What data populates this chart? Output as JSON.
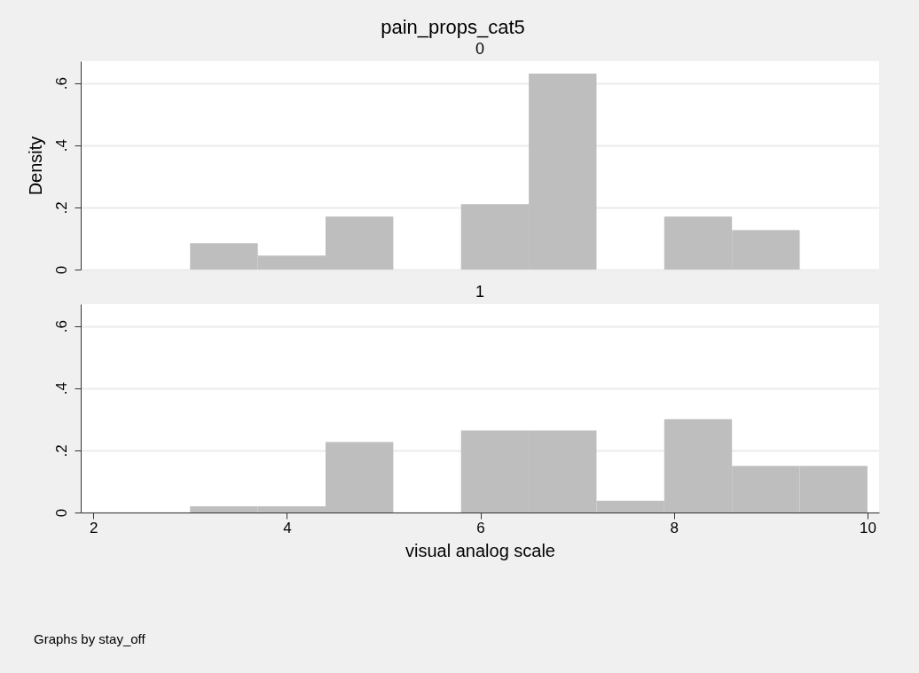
{
  "chart_data": [
    {
      "type": "histogram",
      "title": "pain_props_cat5",
      "subtitle": "0",
      "ylabel": "Density",
      "bins": [
        3,
        3.7,
        4.4,
        5.1,
        5.8,
        6.5,
        7.2,
        7.9,
        8.6,
        9.3,
        10
      ],
      "values": [
        0.085,
        0.045,
        0.17,
        0,
        0.21,
        0.63,
        0,
        0.17,
        0.127,
        0
      ],
      "color": "#bebebe",
      "xlim": [
        1.87,
        10.12
      ],
      "ylim": [
        0,
        0.67
      ],
      "xticks": [
        2,
        4,
        6,
        8,
        10
      ],
      "yticks": [
        0,
        {
          "value": 0.2,
          "label": ".2"
        },
        {
          "value": 0.4,
          "label": ".4"
        },
        {
          "value": 0.6,
          "label": ".6"
        }
      ],
      "grid": "y",
      "tick_labels": "y"
    },
    {
      "type": "histogram",
      "subtitle": "1",
      "xlabel": "visual analog scale",
      "annotations": [
        "Graphs by stay_off"
      ],
      "bins": [
        3,
        3.7,
        4.4,
        5.1,
        5.8,
        6.5,
        7.2,
        7.9,
        8.6,
        9.3,
        10
      ],
      "values": [
        0.02,
        0.02,
        0.227,
        0,
        0.264,
        0.264,
        0.038,
        0.3,
        0.15,
        0.15
      ],
      "color": "#bebebe",
      "xlim": [
        1.87,
        10.12
      ],
      "ylim": [
        0,
        0.67
      ],
      "xticks": [
        2,
        4,
        6,
        8,
        10
      ],
      "yticks": [
        0,
        {
          "value": 0.2,
          "label": ".2"
        },
        {
          "value": 0.4,
          "label": ".4"
        },
        {
          "value": 0.6,
          "label": ".6"
        }
      ],
      "grid": "y"
    }
  ]
}
